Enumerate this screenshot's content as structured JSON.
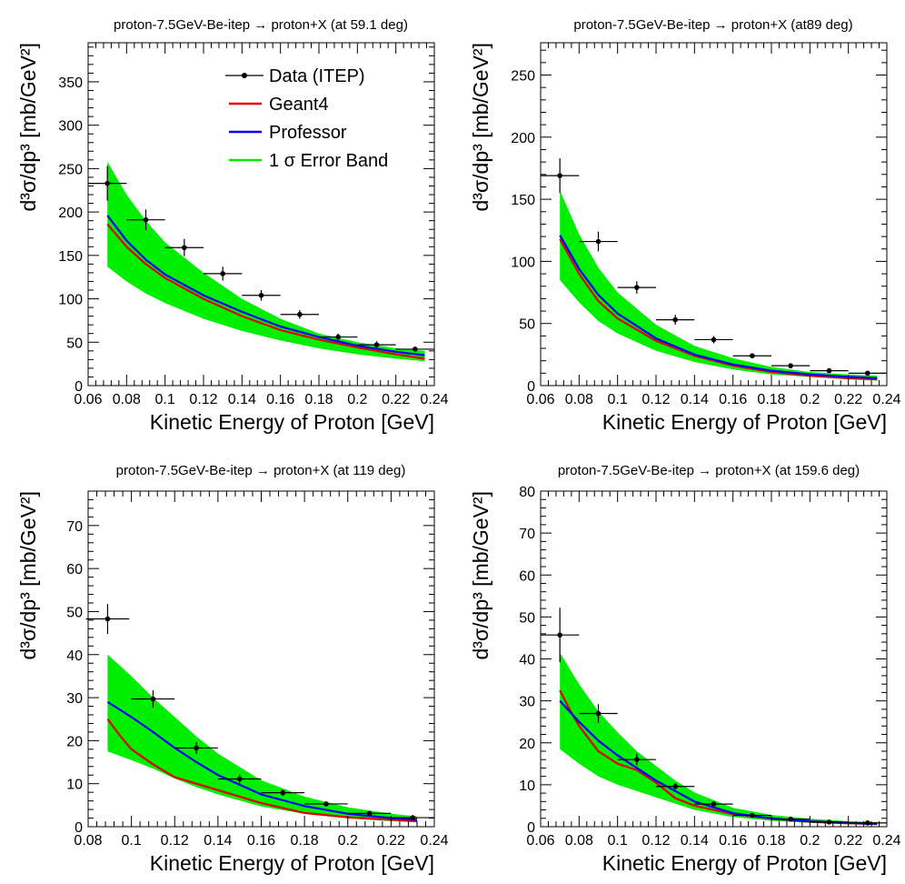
{
  "colors": {
    "data": "#000000",
    "geant4": "#e00000",
    "professor": "#0000ff",
    "band": "#00ee00"
  },
  "legend": {
    "data_label": "Data (ITEP)",
    "geant4_label": "Geant4",
    "professor_label": "Professor",
    "band_label_sigma": "1 σ Error Band"
  },
  "chart_data": [
    {
      "type": "line",
      "title": "proton-7.5GeV-Be-itep → proton+X (at 59.1 deg)",
      "xlabel": "Kinetic Energy of Proton [GeV]",
      "ylabel": "d³σ/dp³ [mb/GeV²]",
      "xlim": [
        0.06,
        0.24
      ],
      "ylim": [
        0,
        395
      ],
      "xticks": [
        "0.06",
        "0.08",
        "0.1",
        "0.12",
        "0.14",
        "0.16",
        "0.18",
        "0.2",
        "0.22",
        "0.24"
      ],
      "yticks": [
        "0",
        "50",
        "100",
        "150",
        "200",
        "250",
        "300",
        "350"
      ],
      "data": {
        "x": [
          0.07,
          0.09,
          0.11,
          0.13,
          0.15,
          0.17,
          0.19,
          0.21,
          0.23
        ],
        "y": [
          233,
          191,
          159,
          129,
          104,
          82,
          56,
          47,
          42
        ],
        "xerr": [
          0.01,
          0.01,
          0.01,
          0.01,
          0.01,
          0.01,
          0.01,
          0.01,
          0.01
        ],
        "yerr": [
          20,
          12,
          10,
          8,
          6,
          5,
          4,
          4,
          3
        ]
      },
      "series": [
        {
          "name": "Geant4",
          "x": [
            0.07,
            0.08,
            0.09,
            0.1,
            0.12,
            0.14,
            0.16,
            0.18,
            0.2,
            0.22,
            0.235
          ],
          "values": [
            186,
            160,
            140,
            124,
            100,
            80,
            64,
            53,
            44,
            36,
            31
          ]
        },
        {
          "name": "Professor",
          "x": [
            0.07,
            0.08,
            0.09,
            0.1,
            0.12,
            0.14,
            0.16,
            0.18,
            0.2,
            0.22,
            0.235
          ],
          "values": [
            196,
            167,
            145,
            128,
            104,
            85,
            68,
            56,
            46,
            39,
            35
          ]
        }
      ],
      "band": {
        "x": [
          0.07,
          0.08,
          0.09,
          0.1,
          0.12,
          0.14,
          0.16,
          0.18,
          0.2,
          0.22,
          0.235
        ],
        "lower": [
          137,
          120,
          106,
          95,
          77,
          63,
          52,
          43,
          36,
          31,
          28
        ],
        "upper": [
          258,
          220,
          190,
          165,
          130,
          100,
          77,
          60,
          50,
          43,
          40
        ]
      },
      "legend_position": "top-center"
    },
    {
      "type": "line",
      "title": "proton-7.5GeV-Be-itep → proton+X (at89 deg)",
      "xlabel": "Kinetic Energy of Proton [GeV]",
      "ylabel": "d³σ/dp³ [mb/GeV²]",
      "xlim": [
        0.06,
        0.24
      ],
      "ylim": [
        0,
        276
      ],
      "xticks": [
        "0.06",
        "0.08",
        "0.1",
        "0.12",
        "0.14",
        "0.16",
        "0.18",
        "0.2",
        "0.22",
        "0.24"
      ],
      "yticks": [
        "0",
        "50",
        "100",
        "150",
        "200",
        "250"
      ],
      "data": {
        "x": [
          0.07,
          0.09,
          0.11,
          0.13,
          0.15,
          0.17,
          0.19,
          0.21,
          0.23
        ],
        "y": [
          169,
          116,
          79,
          53,
          37,
          24,
          16,
          12,
          10
        ],
        "xerr": [
          0.01,
          0.01,
          0.01,
          0.01,
          0.01,
          0.01,
          0.01,
          0.01,
          0.01
        ],
        "yerr": [
          14,
          8,
          5,
          4,
          3,
          2,
          1.5,
          1.2,
          1
        ]
      },
      "series": [
        {
          "name": "Geant4",
          "x": [
            0.07,
            0.08,
            0.09,
            0.1,
            0.12,
            0.14,
            0.16,
            0.18,
            0.2,
            0.22,
            0.235
          ],
          "values": [
            118,
            90,
            68,
            54,
            36,
            24,
            16,
            11,
            8,
            6,
            5
          ]
        },
        {
          "name": "Professor",
          "x": [
            0.07,
            0.08,
            0.09,
            0.1,
            0.12,
            0.14,
            0.16,
            0.18,
            0.2,
            0.22,
            0.235
          ],
          "values": [
            121,
            94,
            73,
            58,
            38,
            25,
            17,
            12,
            9,
            7,
            6
          ]
        }
      ],
      "band": {
        "x": [
          0.07,
          0.08,
          0.09,
          0.1,
          0.12,
          0.14,
          0.16,
          0.18,
          0.2,
          0.22,
          0.235
        ],
        "lower": [
          85,
          67,
          52,
          42,
          28,
          19,
          13,
          9,
          7,
          5,
          4
        ],
        "upper": [
          157,
          122,
          95,
          75,
          49,
          32,
          22,
          15,
          11,
          9,
          8
        ]
      },
      "legend_position": "none"
    },
    {
      "type": "line",
      "title": "proton-7.5GeV-Be-itep → proton+X (at 119 deg)",
      "xlabel": "Kinetic Energy of Proton [GeV]",
      "ylabel": "d³σ/dp³ [mb/GeV²]",
      "xlim": [
        0.08,
        0.24
      ],
      "ylim": [
        0,
        78
      ],
      "xticks": [
        "0.08",
        "0.1",
        "0.12",
        "0.14",
        "0.16",
        "0.18",
        "0.2",
        "0.22",
        "0.24"
      ],
      "yticks": [
        "0",
        "10",
        "20",
        "30",
        "40",
        "50",
        "60",
        "70"
      ],
      "data": {
        "x": [
          0.089,
          0.11,
          0.13,
          0.15,
          0.17,
          0.19,
          0.21,
          0.23
        ],
        "y": [
          48.3,
          29.7,
          18.3,
          11.1,
          7.9,
          5.3,
          3.1,
          2.1
        ],
        "xerr": [
          0.01,
          0.01,
          0.01,
          0.01,
          0.01,
          0.01,
          0.01,
          0.01
        ],
        "yerr": [
          3.5,
          2,
          1.4,
          1,
          0.7,
          0.5,
          0.4,
          0.3
        ]
      },
      "series": [
        {
          "name": "Geant4",
          "x": [
            0.089,
            0.095,
            0.1,
            0.11,
            0.12,
            0.13,
            0.14,
            0.16,
            0.18,
            0.2,
            0.22,
            0.232
          ],
          "values": [
            25,
            21,
            18,
            14.5,
            11.5,
            10,
            8.5,
            5.5,
            3.2,
            2.2,
            1.6,
            1.3
          ]
        },
        {
          "name": "Professor",
          "x": [
            0.089,
            0.1,
            0.11,
            0.12,
            0.13,
            0.14,
            0.16,
            0.18,
            0.2,
            0.22,
            0.232
          ],
          "values": [
            29,
            25.5,
            22,
            18.3,
            15,
            12,
            7.5,
            4.8,
            3,
            2,
            1.6
          ]
        }
      ],
      "band": {
        "x": [
          0.089,
          0.1,
          0.11,
          0.12,
          0.13,
          0.14,
          0.16,
          0.18,
          0.2,
          0.22,
          0.232
        ],
        "lower": [
          17.5,
          15.5,
          13.5,
          11.2,
          9.2,
          7.5,
          4.7,
          3,
          1.9,
          1.3,
          1
        ],
        "upper": [
          40,
          35,
          30,
          25.5,
          21,
          17,
          10.8,
          7,
          4.5,
          3,
          2.4
        ]
      },
      "legend_position": "none"
    },
    {
      "type": "line",
      "title": "proton-7.5GeV-Be-itep    → proton+X (at 159.6 deg)",
      "xlabel": "Kinetic Energy of Proton [GeV]",
      "ylabel": "d³σ/dp³ [mb/GeV²]",
      "xlim": [
        0.06,
        0.24
      ],
      "ylim": [
        0,
        80
      ],
      "xticks": [
        "0.06",
        "0.08",
        "0.1",
        "0.12",
        "0.14",
        "0.16",
        "0.18",
        "0.2",
        "0.22",
        "0.24"
      ],
      "yticks": [
        "0",
        "10",
        "20",
        "30",
        "40",
        "50",
        "60",
        "70",
        "80"
      ],
      "data": {
        "x": [
          0.07,
          0.09,
          0.11,
          0.13,
          0.15,
          0.17,
          0.19,
          0.21,
          0.23
        ],
        "y": [
          45.7,
          27,
          16,
          9.6,
          5.4,
          2.7,
          1.8,
          1.1,
          0.9
        ],
        "xerr": [
          0.01,
          0.01,
          0.01,
          0.01,
          0.01,
          0.01,
          0.01,
          0.01,
          0.01
        ],
        "yerr": [
          6.5,
          2.2,
          1.4,
          0.8,
          0.5,
          0.3,
          0.2,
          0.15,
          0.1
        ]
      },
      "series": [
        {
          "name": "Geant4",
          "x": [
            0.07,
            0.075,
            0.08,
            0.09,
            0.1,
            0.11,
            0.12,
            0.13,
            0.14,
            0.16,
            0.18,
            0.2,
            0.22,
            0.235
          ],
          "values": [
            32.5,
            28,
            24,
            18,
            15,
            13.5,
            10.5,
            6.8,
            5,
            3,
            1.9,
            1.2,
            0.8,
            0.6
          ]
        },
        {
          "name": "Professor",
          "x": [
            0.07,
            0.08,
            0.09,
            0.1,
            0.11,
            0.12,
            0.13,
            0.14,
            0.16,
            0.18,
            0.2,
            0.22,
            0.235
          ],
          "values": [
            30,
            25,
            20.5,
            17,
            14,
            11,
            8.5,
            6,
            3.2,
            2,
            1.3,
            0.9,
            0.7
          ]
        }
      ],
      "band": {
        "x": [
          0.07,
          0.08,
          0.09,
          0.1,
          0.11,
          0.12,
          0.13,
          0.14,
          0.16,
          0.18,
          0.2,
          0.22,
          0.235
        ],
        "lower": [
          18.5,
          15,
          12,
          10,
          8.5,
          7,
          5.5,
          4,
          2.3,
          1.4,
          0.9,
          0.6,
          0.5
        ],
        "upper": [
          41.5,
          34,
          27.5,
          22.5,
          18,
          14.5,
          11,
          8.2,
          4.5,
          2.8,
          1.9,
          1.3,
          1.1
        ]
      },
      "legend_position": "none"
    }
  ]
}
